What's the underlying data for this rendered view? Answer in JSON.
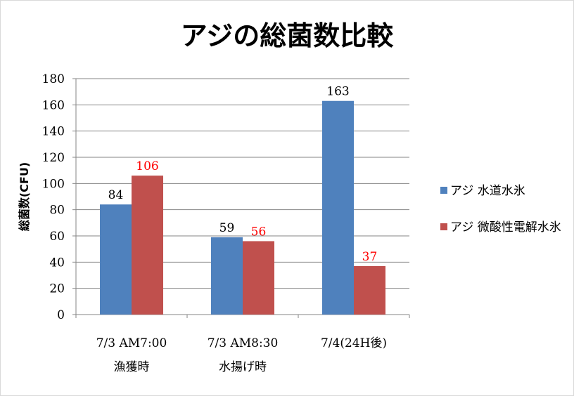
{
  "chart_data": {
    "type": "bar",
    "title": "アジの総菌数比較",
    "ylabel": "総菌数(CFU)",
    "xlabel": "",
    "ylim": [
      0,
      180
    ],
    "yticks": [
      0,
      20,
      40,
      60,
      80,
      100,
      120,
      140,
      160,
      180
    ],
    "grid": true,
    "legend_position": "right",
    "categories": [
      [
        "7/3 AM7:00",
        "漁獲時"
      ],
      [
        "7/3 AM8:30",
        "水揚げ時"
      ],
      [
        "7/4(24H後)"
      ]
    ],
    "series": [
      {
        "name": "アジ 水道水氷",
        "values": [
          84,
          59,
          163
        ],
        "color": "#4f81bd",
        "label_color": "#000000"
      },
      {
        "name": "アジ 微酸性電解水氷",
        "values": [
          106,
          56,
          37
        ],
        "color": "#c0504d",
        "label_color": "#ff0000"
      }
    ]
  }
}
